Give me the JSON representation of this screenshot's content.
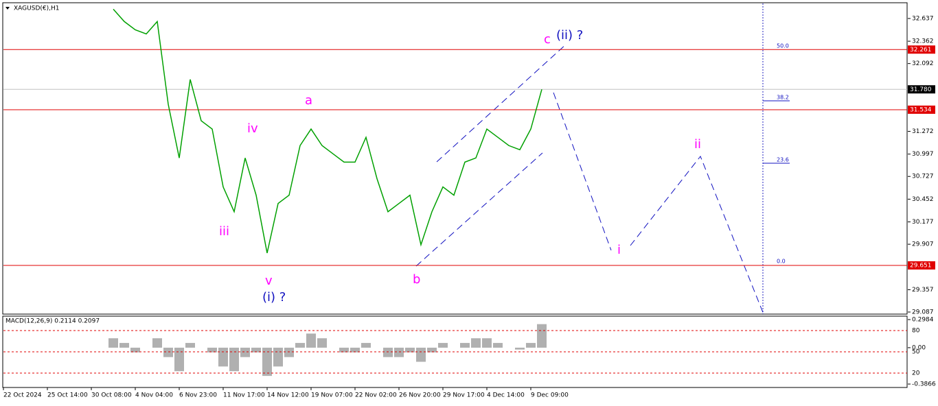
{
  "header": "XAGUSD(€),H1",
  "chart_data": {
    "type": "line",
    "color": "#00a000",
    "categories": [
      "22 Oct 2024",
      null,
      null,
      null,
      "25 Oct 14:00",
      null,
      null,
      null,
      "30 Oct 08:00",
      null,
      null,
      null,
      "4 Nov 04:00",
      null,
      null,
      null,
      "6 Nov 23:00",
      null,
      null,
      null,
      "11 Nov 17:00",
      null,
      null,
      null,
      "14 Nov 12:00",
      null,
      null,
      null,
      "19 Nov 07:00",
      null,
      null,
      null,
      "22 Nov 02:00",
      null,
      null,
      null,
      "26 Nov 20:00",
      null,
      null,
      null,
      "29 Nov 17:00",
      null,
      null,
      null,
      "4 Dec 14:00",
      null,
      null,
      null,
      "9 Dec 09:00",
      null
    ],
    "values": [
      null,
      null,
      null,
      null,
      null,
      null,
      null,
      null,
      null,
      null,
      32.75,
      32.6,
      32.5,
      32.45,
      32.6,
      31.6,
      30.95,
      31.9,
      31.4,
      31.3,
      30.6,
      30.3,
      30.95,
      30.5,
      29.8,
      30.4,
      30.5,
      31.1,
      31.3,
      31.1,
      31.0,
      30.9,
      30.9,
      31.2,
      30.7,
      30.3,
      30.4,
      30.5,
      29.9,
      30.3,
      30.6,
      30.5,
      30.9,
      30.95,
      31.3,
      31.2,
      31.1,
      31.05,
      31.3,
      31.78
    ],
    "ylim": [
      29.062,
      32.819
    ],
    "yticks": [
      32.637,
      32.362,
      32.092,
      31.272,
      30.997,
      30.727,
      30.452,
      30.177,
      29.907,
      29.357,
      29.087
    ],
    "levels": [
      32.261,
      31.534,
      29.651
    ],
    "level_color": "#e00000",
    "current_price": {
      "value": 31.78,
      "label": "31.780"
    },
    "annotations": [
      {
        "text": "c",
        "color": "#ff00ff"
      },
      {
        "text": "(ii) ?",
        "color": "#1010c0"
      },
      {
        "text": "a",
        "color": "#ff00ff"
      },
      {
        "text": "iv",
        "color": "#ff00ff"
      },
      {
        "text": "iii",
        "color": "#ff00ff"
      },
      {
        "text": "v",
        "color": "#ff00ff"
      },
      {
        "text": "(i) ?",
        "color": "#1010c0"
      },
      {
        "text": "b",
        "color": "#ff00ff"
      },
      {
        "text": "i",
        "color": "#ff00ff"
      },
      {
        "text": "ii",
        "color": "#ff00ff"
      }
    ],
    "fib_labels": [
      "50.0",
      "38.2",
      "23.6",
      "0.0"
    ],
    "macd": {
      "title": "MACD(12,26,9) 0.2114 0.2097",
      "color": "#b0b0b0",
      "values": [
        null,
        null,
        null,
        null,
        null,
        null,
        null,
        null,
        null,
        null,
        0.1,
        0.05,
        -0.05,
        0.0,
        0.1,
        -0.1,
        -0.25,
        0.05,
        0.0,
        -0.05,
        -0.2,
        -0.25,
        -0.1,
        -0.05,
        -0.3,
        -0.2,
        -0.1,
        0.05,
        0.15,
        0.1,
        0.0,
        -0.05,
        -0.05,
        0.05,
        0.0,
        -0.1,
        -0.1,
        -0.05,
        -0.15,
        -0.05,
        0.05,
        0.0,
        0.05,
        0.1,
        0.1,
        0.05,
        0.0,
        -0.02,
        0.05,
        0.25
      ],
      "ylim": [
        -0.3866,
        0.2984
      ],
      "ticks": [
        0.2984,
        {
          "value": 0,
          "label": "0.00"
        },
        -0.3866
      ],
      "panel_labels": [
        "80",
        "50",
        "20"
      ]
    }
  }
}
